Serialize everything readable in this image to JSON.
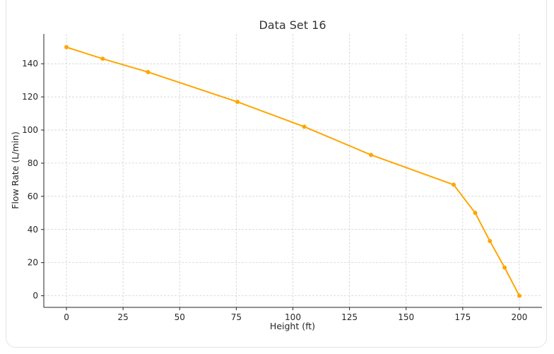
{
  "chart_data": {
    "type": "line",
    "title": "Data Set 16",
    "xlabel": "Height (ft)",
    "ylabel": "Flow Rate (L/min)",
    "xlim": [
      -10,
      210
    ],
    "ylim": [
      -7,
      158
    ],
    "xticks": [
      0,
      25,
      50,
      75,
      100,
      125,
      150,
      175,
      200
    ],
    "yticks": [
      0,
      20,
      40,
      60,
      80,
      100,
      120,
      140
    ],
    "grid": true,
    "legend": "none",
    "color": "#FFA500",
    "series": [
      {
        "x": [
          0,
          16,
          36,
          75.5,
          105,
          134.5,
          171,
          180.5,
          187,
          193.5,
          200
        ],
        "y": [
          150,
          143,
          135,
          117,
          102,
          85,
          67,
          50,
          33,
          17,
          0
        ]
      }
    ]
  }
}
